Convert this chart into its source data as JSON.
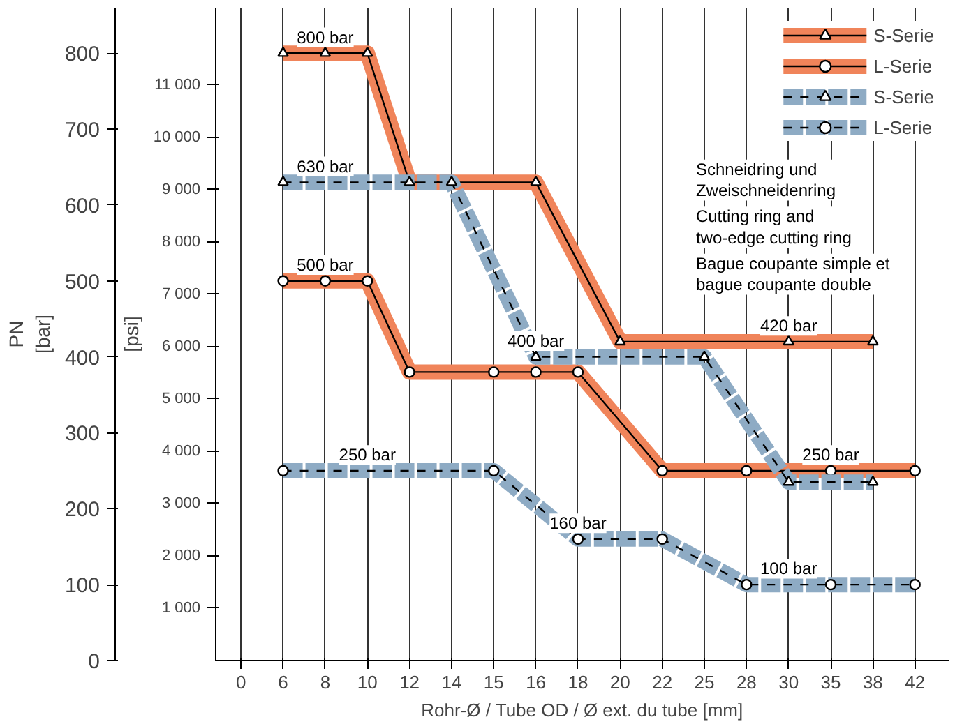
{
  "chart_data": {
    "type": "line",
    "xlabel": "Rohr-Ø / Tube OD / Ø ext. du tube [mm]",
    "ylabel": "PN\n[bar]",
    "y2label": "[psi]",
    "categories": [
      "0",
      "6",
      "8",
      "10",
      "12",
      "14",
      "15",
      "16",
      "18",
      "20",
      "22",
      "25",
      "28",
      "30",
      "35",
      "38",
      "42"
    ],
    "ylim": [
      0,
      860
    ],
    "yticks": [
      0,
      100,
      200,
      300,
      400,
      500,
      600,
      700,
      800
    ],
    "y2lim": [
      0,
      12473
    ],
    "y2ticks": [
      {
        "value": 1000,
        "label": "1 000"
      },
      {
        "value": 2000,
        "label": "2 000"
      },
      {
        "value": 3000,
        "label": "3 000"
      },
      {
        "value": 4000,
        "label": "4 000"
      },
      {
        "value": 5000,
        "label": "5 000"
      },
      {
        "value": 6000,
        "label": "6 000"
      },
      {
        "value": 7000,
        "label": "7 000"
      },
      {
        "value": 8000,
        "label": "8 000"
      },
      {
        "value": 9000,
        "label": "9 000"
      },
      {
        "value": 10000,
        "label": "10 000"
      },
      {
        "value": 11000,
        "label": "11 000"
      }
    ],
    "grid": "x",
    "legend": "top right",
    "series": [
      {
        "name": "S-Serie",
        "color": "#f0845a",
        "marker": "triangle",
        "line_style": "solid",
        "values": [
          null,
          800,
          800,
          800,
          630,
          null,
          null,
          630,
          null,
          420,
          null,
          null,
          null,
          420,
          null,
          420,
          null
        ]
      },
      {
        "name": "L-Serie",
        "color": "#f0845a",
        "marker": "circle",
        "line_style": "solid",
        "values": [
          null,
          500,
          500,
          500,
          380,
          null,
          380,
          380,
          380,
          null,
          250,
          null,
          250,
          null,
          250,
          null,
          250
        ]
      },
      {
        "name": "S-Serie",
        "color": "#8eabc4",
        "marker": "triangle",
        "line_style": "dashed",
        "values": [
          null,
          630,
          null,
          null,
          630,
          630,
          null,
          400,
          null,
          null,
          null,
          400,
          null,
          235,
          null,
          235,
          null
        ]
      },
      {
        "name": "L-Serie",
        "color": "#8eabc4",
        "marker": "circle",
        "line_style": "dashed",
        "values": [
          null,
          250,
          null,
          null,
          null,
          null,
          250,
          null,
          160,
          null,
          160,
          null,
          100,
          null,
          100,
          null,
          100
        ]
      }
    ],
    "annotations": [
      {
        "text": "800 bar",
        "x": "8",
        "y": 800
      },
      {
        "text": "630 bar",
        "x": "8",
        "y": 630
      },
      {
        "text": "500 bar",
        "x": "8",
        "y": 500
      },
      {
        "text": "400 bar",
        "x": "16",
        "y": 400
      },
      {
        "text": "250 bar",
        "x": "10",
        "y": 250
      },
      {
        "text": "420 bar",
        "x": "30",
        "y": 420
      },
      {
        "text": "250 bar",
        "x": "35",
        "y": 250
      },
      {
        "text": "160 bar",
        "x": "18",
        "y": 160
      },
      {
        "text": "100 bar",
        "x": "30",
        "y": 100
      },
      "Schneidring und\nZweischneidenring",
      "Cutting ring and\ntwo-edge cutting ring",
      "Bague coupante simple et\nbague coupante double"
    ]
  }
}
